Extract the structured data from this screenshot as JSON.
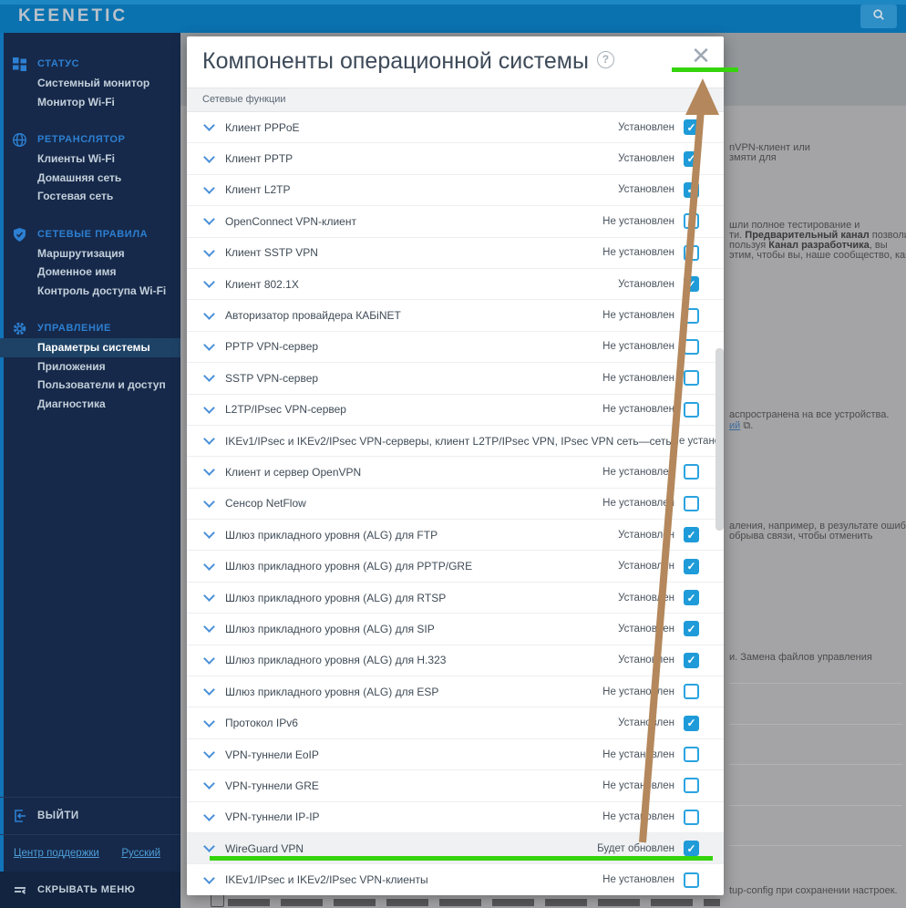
{
  "header": {
    "logo": "KEENETIC"
  },
  "sidebar": {
    "sections": [
      {
        "label": "СТАТУС",
        "icon": "dashboard-icon",
        "items": [
          {
            "label": "Системный монитор"
          },
          {
            "label": "Монитор Wi-Fi"
          }
        ]
      },
      {
        "label": "РЕТРАНСЛЯТОР",
        "icon": "globe-icon",
        "items": [
          {
            "label": "Клиенты Wi-Fi"
          },
          {
            "label": "Домашняя сеть"
          },
          {
            "label": "Гостевая сеть"
          }
        ]
      },
      {
        "label": "СЕТЕВЫЕ ПРАВИЛА",
        "icon": "shield-icon",
        "items": [
          {
            "label": "Маршрутизация"
          },
          {
            "label": "Доменное имя"
          },
          {
            "label": "Контроль доступа Wi-Fi"
          }
        ]
      },
      {
        "label": "УПРАВЛЕНИЕ",
        "icon": "gear-icon",
        "items": [
          {
            "label": "Параметры системы",
            "selected": true
          },
          {
            "label": "Приложения"
          },
          {
            "label": "Пользователи и доступ"
          },
          {
            "label": "Диагностика"
          }
        ]
      }
    ],
    "logout_label": "ВЫЙТИ",
    "support_link": "Центр поддержки",
    "language_link": "Русский",
    "hide_menu_label": "СКРЫВАТЬ МЕНЮ"
  },
  "modal": {
    "title": "Компоненты операционной системы",
    "help_icon": "?",
    "close_icon": "✕",
    "section_header": "Сетевые функции",
    "status_installed": "Установлен",
    "status_not_installed": "Не установлен",
    "status_will_update": "Будет обновлен",
    "rows": [
      {
        "label": "Клиент PPPoE",
        "status": "Установлен",
        "checked": true
      },
      {
        "label": "Клиент PPTP",
        "status": "Установлен",
        "checked": true
      },
      {
        "label": "Клиент L2TP",
        "status": "Установлен",
        "checked": true
      },
      {
        "label": "OpenConnect VPN-клиент",
        "status": "Не установлен",
        "checked": false
      },
      {
        "label": "Клиент SSTP VPN",
        "status": "Не установлен",
        "checked": false
      },
      {
        "label": "Клиент 802.1X",
        "status": "Установлен",
        "checked": true
      },
      {
        "label": "Авторизатор провайдера КАБiNET",
        "status": "Не установлен",
        "checked": false
      },
      {
        "label": "PPTP VPN-сервер",
        "status": "Не установлен",
        "checked": false
      },
      {
        "label": "SSTP VPN-сервер",
        "status": "Не установлен",
        "checked": false
      },
      {
        "label": "L2TP/IPsec VPN-сервер",
        "status": "Не установлен",
        "checked": false
      },
      {
        "label": "IKEv1/IPsec и IKEv2/IPsec VPN-серверы, клиент L2TP/IPsec VPN, IPsec VPN сеть—сеть",
        "status": "Не установлен",
        "checked": false
      },
      {
        "label": "Клиент и сервер OpenVPN",
        "status": "Не установлен",
        "checked": false
      },
      {
        "label": "Сенсор NetFlow",
        "status": "Не установлен",
        "checked": false
      },
      {
        "label": "Шлюз прикладного уровня (ALG) для FTP",
        "status": "Установлен",
        "checked": true
      },
      {
        "label": "Шлюз прикладного уровня (ALG) для PPTP/GRE",
        "status": "Установлен",
        "checked": true
      },
      {
        "label": "Шлюз прикладного уровня (ALG) для RTSP",
        "status": "Установлен",
        "checked": true
      },
      {
        "label": "Шлюз прикладного уровня (ALG) для SIP",
        "status": "Установлен",
        "checked": true
      },
      {
        "label": "Шлюз прикладного уровня (ALG) для H.323",
        "status": "Установлен",
        "checked": true
      },
      {
        "label": "Шлюз прикладного уровня (ALG) для ESP",
        "status": "Не установлен",
        "checked": false
      },
      {
        "label": "Протокол IPv6",
        "status": "Установлен",
        "checked": true
      },
      {
        "label": "VPN-туннели EoIP",
        "status": "Не установлен",
        "checked": false
      },
      {
        "label": "VPN-туннели GRE",
        "status": "Не установлен",
        "checked": false
      },
      {
        "label": "VPN-туннели IP-IP",
        "status": "Не установлен",
        "checked": false
      },
      {
        "label": "WireGuard VPN",
        "status": "Будет обновлен",
        "checked": true,
        "highlighted": true
      },
      {
        "label": "IKEv1/IPsec и IKEv2/IPsec VPN-клиенты",
        "status": "Не установлен",
        "checked": false
      }
    ]
  },
  "background": {
    "fragments": [
      {
        "parts": [
          {
            "t": "nVPN-клиент или"
          }
        ]
      },
      {
        "parts": [
          {
            "t": "змяти для"
          }
        ]
      },
      {
        "parts": [
          {
            "t": "шли полное тестирование и"
          }
        ]
      },
      {
        "parts": [
          {
            "t": "ти. "
          },
          {
            "t": "Предварительный канал",
            "b": true
          },
          {
            "t": " позволит"
          }
        ]
      },
      {
        "parts": [
          {
            "t": "пользуя "
          },
          {
            "t": "Канал разработчика",
            "b": true
          },
          {
            "t": ", вы"
          }
        ]
      },
      {
        "parts": [
          {
            "t": "этим, чтобы вы, наше сообщество, как"
          }
        ]
      },
      {
        "parts": [
          {
            "t": "аспространена на все устройства."
          }
        ]
      },
      {
        "parts": [
          {
            "t": "ий",
            "link": true
          },
          {
            "t": " ⧉."
          }
        ]
      },
      {
        "parts": [
          {
            "t": "аления, например, в результате ошибки"
          }
        ]
      },
      {
        "parts": [
          {
            "t": "обрыва связи, чтобы отменить"
          }
        ]
      },
      {
        "parts": [
          {
            "t": "и. Замена файлов управления"
          }
        ]
      },
      {
        "parts": [
          {
            "t": "tup-config при сохранении настроек."
          }
        ]
      }
    ]
  },
  "annotations": {
    "highlight_color": "#35d40c",
    "arrow_color": "#b4885c",
    "checkbox_color": "#1e9bd8"
  }
}
